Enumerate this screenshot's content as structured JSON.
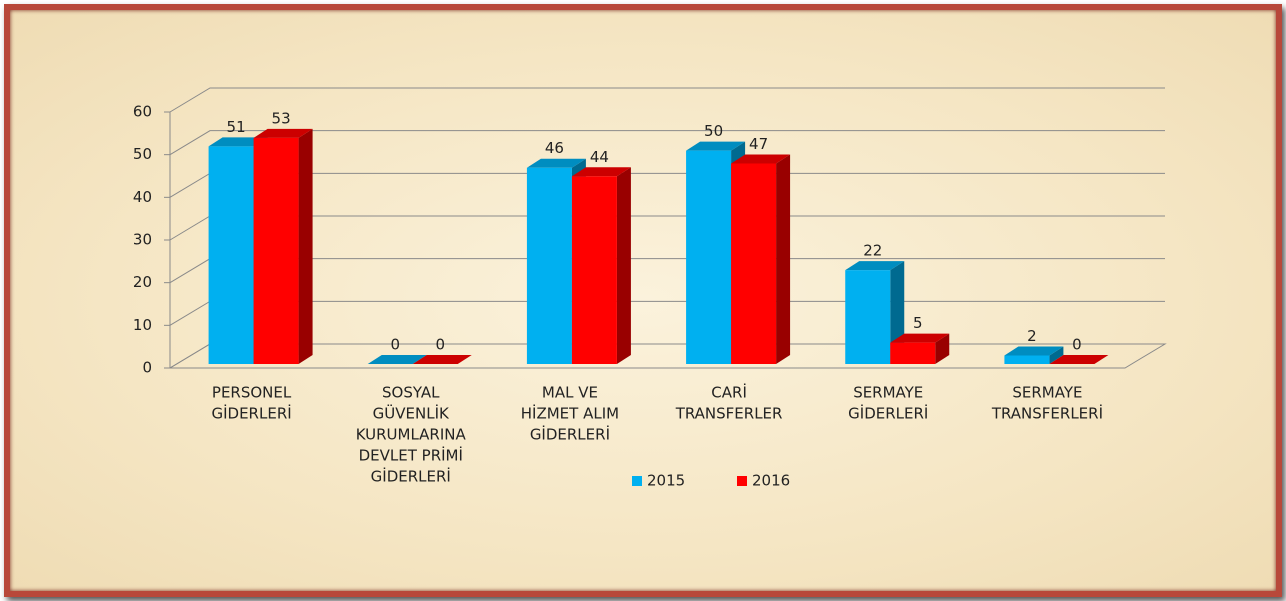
{
  "chart_data": {
    "type": "bar3d",
    "categories": [
      [
        "PERSONEL",
        "GİDERLERİ"
      ],
      [
        "SOSYAL",
        "GÜVENLİK",
        "KURUMLARINA",
        "DEVLET PRİMİ",
        "GİDERLERİ"
      ],
      [
        "MAL VE",
        "HİZMET ALIM",
        "GİDERLERİ"
      ],
      [
        "CARİ",
        "TRANSFERLER"
      ],
      [
        "SERMAYE",
        "GİDERLERİ"
      ],
      [
        "SERMAYE",
        "TRANSFERLERİ"
      ]
    ],
    "series": [
      {
        "name": "2015",
        "color": "#00b0f0",
        "values": [
          51,
          0,
          46,
          50,
          22,
          2
        ]
      },
      {
        "name": "2016",
        "color": "#ff0000",
        "values": [
          53,
          0,
          44,
          47,
          5,
          0
        ]
      }
    ],
    "ylim": [
      0,
      60
    ],
    "yticks": [
      0,
      10,
      20,
      30,
      40,
      50,
      60
    ],
    "grid": true,
    "legend": "bottom"
  }
}
